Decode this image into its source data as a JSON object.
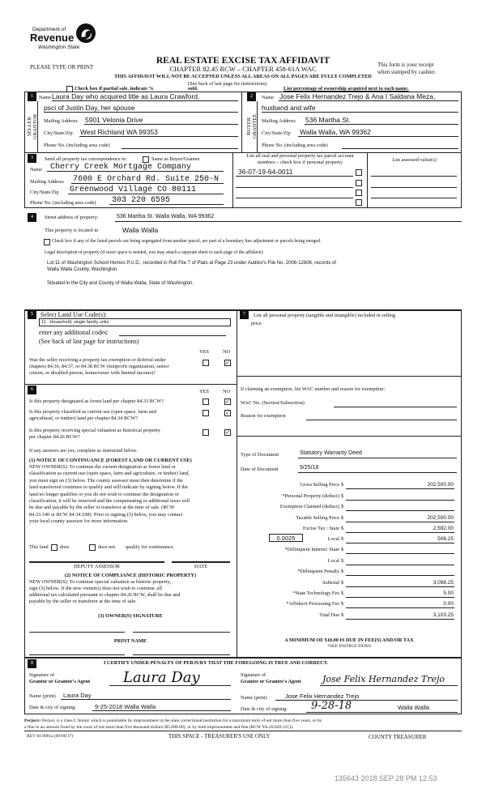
{
  "header": {
    "logo": {
      "line1": "Department of",
      "line2": "Revenue",
      "line3": "Washington State"
    },
    "title": "REAL ESTATE EXCISE TAX AFFIDAVIT",
    "chapter": "CHAPTER 82.45 RCW – CHAPTER 458-61A WAC",
    "please_type": "PLEASE TYPE OR PRINT",
    "receipt_1": "This form is your receipt",
    "receipt_2": "when stamped by cashier.",
    "warning": "THIS AFFIDAVIT WILL NOT BE ACCEPTED UNLESS ALL AREAS ON ALL PAGES ARE FULLY COMPLETED",
    "see_back": "(See back of last page for instructions)",
    "partial_sale": "Check box if partial sale, indicate %",
    "sold": "sold.",
    "list_percentage": "List percentage of ownership acquired next to each name."
  },
  "seller": {
    "num": "1",
    "side_label_1": "SELLER",
    "side_label_2": "GRANTOR",
    "name_label": "Name",
    "name": "Laura Day who acquired title as Laura Crawford,",
    "name_2": "psci of Justin Day, her spouse",
    "mailing_label": "Mailing Address",
    "mailing": "5901 Velonia Drive",
    "city_label": "City/State/Zip",
    "city": "West Richland WA 99353",
    "phone_label": "Phone No. (including area code)",
    "phone": ""
  },
  "buyer": {
    "num": "2",
    "side_label_1": "BUYER",
    "side_label_2": "GRANTEE",
    "name_label": "Name",
    "name": "Jose Felix Hernandez Trejo & Ana I Saldana Meza,",
    "name_2": "husband and wife",
    "mailing_label": "Mailing Address",
    "mailing": "536 Martha St.",
    "city_label": "City/State/Zip",
    "city": "Walla Walla, WA 99362",
    "phone_label": "Phone No. (including area code)",
    "phone": ""
  },
  "correspondence": {
    "num": "3",
    "send_label": "Send all property tax correspondence to:",
    "same_as": "Same as Buyer/Grantee",
    "name_label": "Name",
    "name": "Cherry Creek Mortgage Company",
    "mailing_label": "Mailing Address",
    "mailing": "7600 E Orchard Rd. Suite 250-N",
    "city_label": "City/State/Zip",
    "city": "Greenwood Village CO 80111",
    "phone_label": "Phone No. (including area code)",
    "phone": "303 220 6595",
    "parcel_header_1": "List all real and personal property tax parcel account",
    "parcel_header_2": "numbers – check box if personal property",
    "parcels": [
      "36-07-19-64-0011",
      "",
      "",
      ""
    ],
    "assessed_header": "List assessed value(s)"
  },
  "property": {
    "num": "4",
    "street_label": "Street address of property:",
    "street": "536 Martha St. Walla Walla, WA 99362",
    "located_label": "This property is located in",
    "located": "Walla Walla",
    "segregated": "Check box if any of the listed parcels are being segregated from another parcel, are part of a boundary line adjustment or parcels being merged.",
    "legal_label": "Legal description of property (if more space is needed, you may attach a separate sheet to each page of the affidavit)",
    "legal_1": "Lot 11 of Washington School Homes P.U.D., recorded in Roll File 7 of Plats at Page 23 under Auditor's File No. 2006-12606, records of",
    "legal_2": "Walla Walla County, Washington.",
    "legal_3": "Situated in the City and County of Walla Walla, State of Washington."
  },
  "land_use": {
    "num": "5",
    "label": "Select Land Use Code(s):",
    "code": "11 - Household, single family units",
    "additional": "enter any additional codes:",
    "see_back": "(See back of last page for instructions)",
    "yes": "YES",
    "no": "NO",
    "q1": [
      "Was the seller receiving a property tax exemption or deferral under",
      "chapters 84.36, 84.37, or 84.38 RCW (nonprofit organization, senior",
      "citizen, or disabled person, homeowner with limited income)?"
    ],
    "q1_answer": "NO"
  },
  "designation": {
    "num": "6",
    "yes": "YES",
    "no": "NO",
    "q1": [
      "Is this property designated as forest land per chapter 84.33 RCW?"
    ],
    "q2": [
      "Is this property classified as current use (open space, farm and",
      "agricultural, or timber) land per chapter 84.34 RCW?"
    ],
    "q3": [
      "Is this property receiving special valuation as historical property",
      "per chapter 84.26 RCW?"
    ],
    "answers": [
      "NO",
      "NO",
      "NO"
    ],
    "if_yes": "If any answers are yes, complete as instructed below.",
    "notice1_title": "(1) NOTICE OF CONTINUANCE  (FOREST LAND OR CURRENT USE)",
    "notice1": [
      "NEW OWNER(S): To continue the current designation as forest land or",
      "classification as current use (open space, farm and agriculture, or timber) land,",
      "you must sign on (3) below. The county assessor must then determine if the",
      "land transferred continues to qualify and will indicate by signing below. If the",
      "land no longer qualifies or you do not wish to continue the designation or",
      "classification, it will be removed and the compensating or additional taxes will",
      "be due and payable by the seller or transferor at the time of sale. (RCW",
      "84.33.140 or RCW 84.34.108). Prior to signing (3) below, you may contact",
      "your local county assessor for more information."
    ],
    "this_land": "This land",
    "does": "does",
    "does_not": "does not",
    "qualify": "qualify for continuance.",
    "deputy": "DEPUTY ASSESSOR",
    "date": "DATE",
    "notice2_title": "(2) NOTICE OF COMPLIANCE (HISTORIC PROPERTY)",
    "notice2": [
      "NEW OWNER(S): To continue special valuation as historic property,",
      "sign (3) below. If the new owner(s) does not wish to continue, all",
      "additional tax calculated pursuant to chapter 84.26 RCW, shall be due and",
      "payable by the seller or transferor at the time of sale."
    ],
    "owner_sig": "(3)  OWNER(S) SIGNATURE",
    "print_name": "PRINT NAME"
  },
  "personal_property": {
    "num": "7",
    "label_1": "List all  personal property (tangible and intangible) included in selling",
    "label_2": "price.",
    "exemption_label": "If claiming an exemption, list WAC number and reason for exemption:",
    "wac_label": "WAC No. (Section/Subsection)",
    "wac": "",
    "reason_label": "Reason for exemption",
    "reason": "",
    "doc_type_label": "Type of Document",
    "doc_type": "Statutory Warranty Deed",
    "doc_date_label": "Date of Document",
    "doc_date": "9/25/18"
  },
  "tax": {
    "local_rate": "0.0025",
    "rows": [
      {
        "label": "Gross Selling Price",
        "value": "202,500.00"
      },
      {
        "label": "*Personal Property (deduct)",
        "value": ""
      },
      {
        "label": "Exemption Claimed (deduct)",
        "value": ""
      },
      {
        "label": "Taxable Selling Price",
        "value": "202,500.00"
      },
      {
        "label": "Excise Tax : State",
        "value": "2,592.00"
      },
      {
        "label": "Local",
        "value": "506.25"
      },
      {
        "label": "*Delinquent Interest: State",
        "value": ""
      },
      {
        "label": "Local",
        "value": ""
      },
      {
        "label": "*Delinquent Penalty",
        "value": ""
      },
      {
        "label": "Subtotal",
        "value": "3,098.25"
      },
      {
        "label": "*State Technology Fee",
        "value": "5.00"
      },
      {
        "label": "*Affidavit Processing Fee",
        "value": "0.00"
      },
      {
        "label": "Total Due",
        "value": "3,103.25"
      }
    ],
    "dollar": "$",
    "minimum": "A MINIMUM OF $10.00 IS DUE IN FEE(S) AND/OR TAX",
    "see_instructions": "*SEE INSTRUCTIONS"
  },
  "certify": {
    "num": "8",
    "statement": "I CERTIFY UNDER PENALTY OF PERJURY THAT THE FOREGOING IS TRUE AND CORRECT.",
    "grantor_sig_1": "Signature of",
    "grantor_sig_2": "Grantor or Grantor's Agent",
    "grantor_signature": "Laura Day",
    "grantor_name_label": "Name (print)",
    "grantor_name": "Laura Day",
    "grantor_date_label": "Date & city of signing:",
    "grantor_date": "9-25-2018 Walla Walla",
    "grantee_sig_1": "Signature of",
    "grantee_sig_2": "Grantee or Grantee's Agent",
    "grantee_signature": "Jose Felix Hernandez Trejo",
    "grantee_name_label": "Name (print)",
    "grantee_name": "Jose Felix Hernandez Trejo",
    "grantee_date_label": "Date & city of signing:",
    "grantee_date": "9-28-18",
    "grantee_city": "Walla Walla"
  },
  "footer": {
    "perjury_label": "Perjury:",
    "perjury_1": "Perjury is a class C felony which is punishable by imprisonment in the state correctional institution for a maximum term of not more than five years, or by",
    "perjury_2": "a fine in an amount fixed by the court of not more than five thousand dollars ($5,000.00), or by both imprisonment and fine (RCW 9A.20.020 (1C)).",
    "rev": "REV 84 0001a (09/06/17)",
    "treasurer_space": "THIS SPACE - TREASURER'S USE ONLY",
    "county_treasurer": "COUNTY TREASURER",
    "stamp": "135643 2018 SEP 28 PM 12:53"
  }
}
